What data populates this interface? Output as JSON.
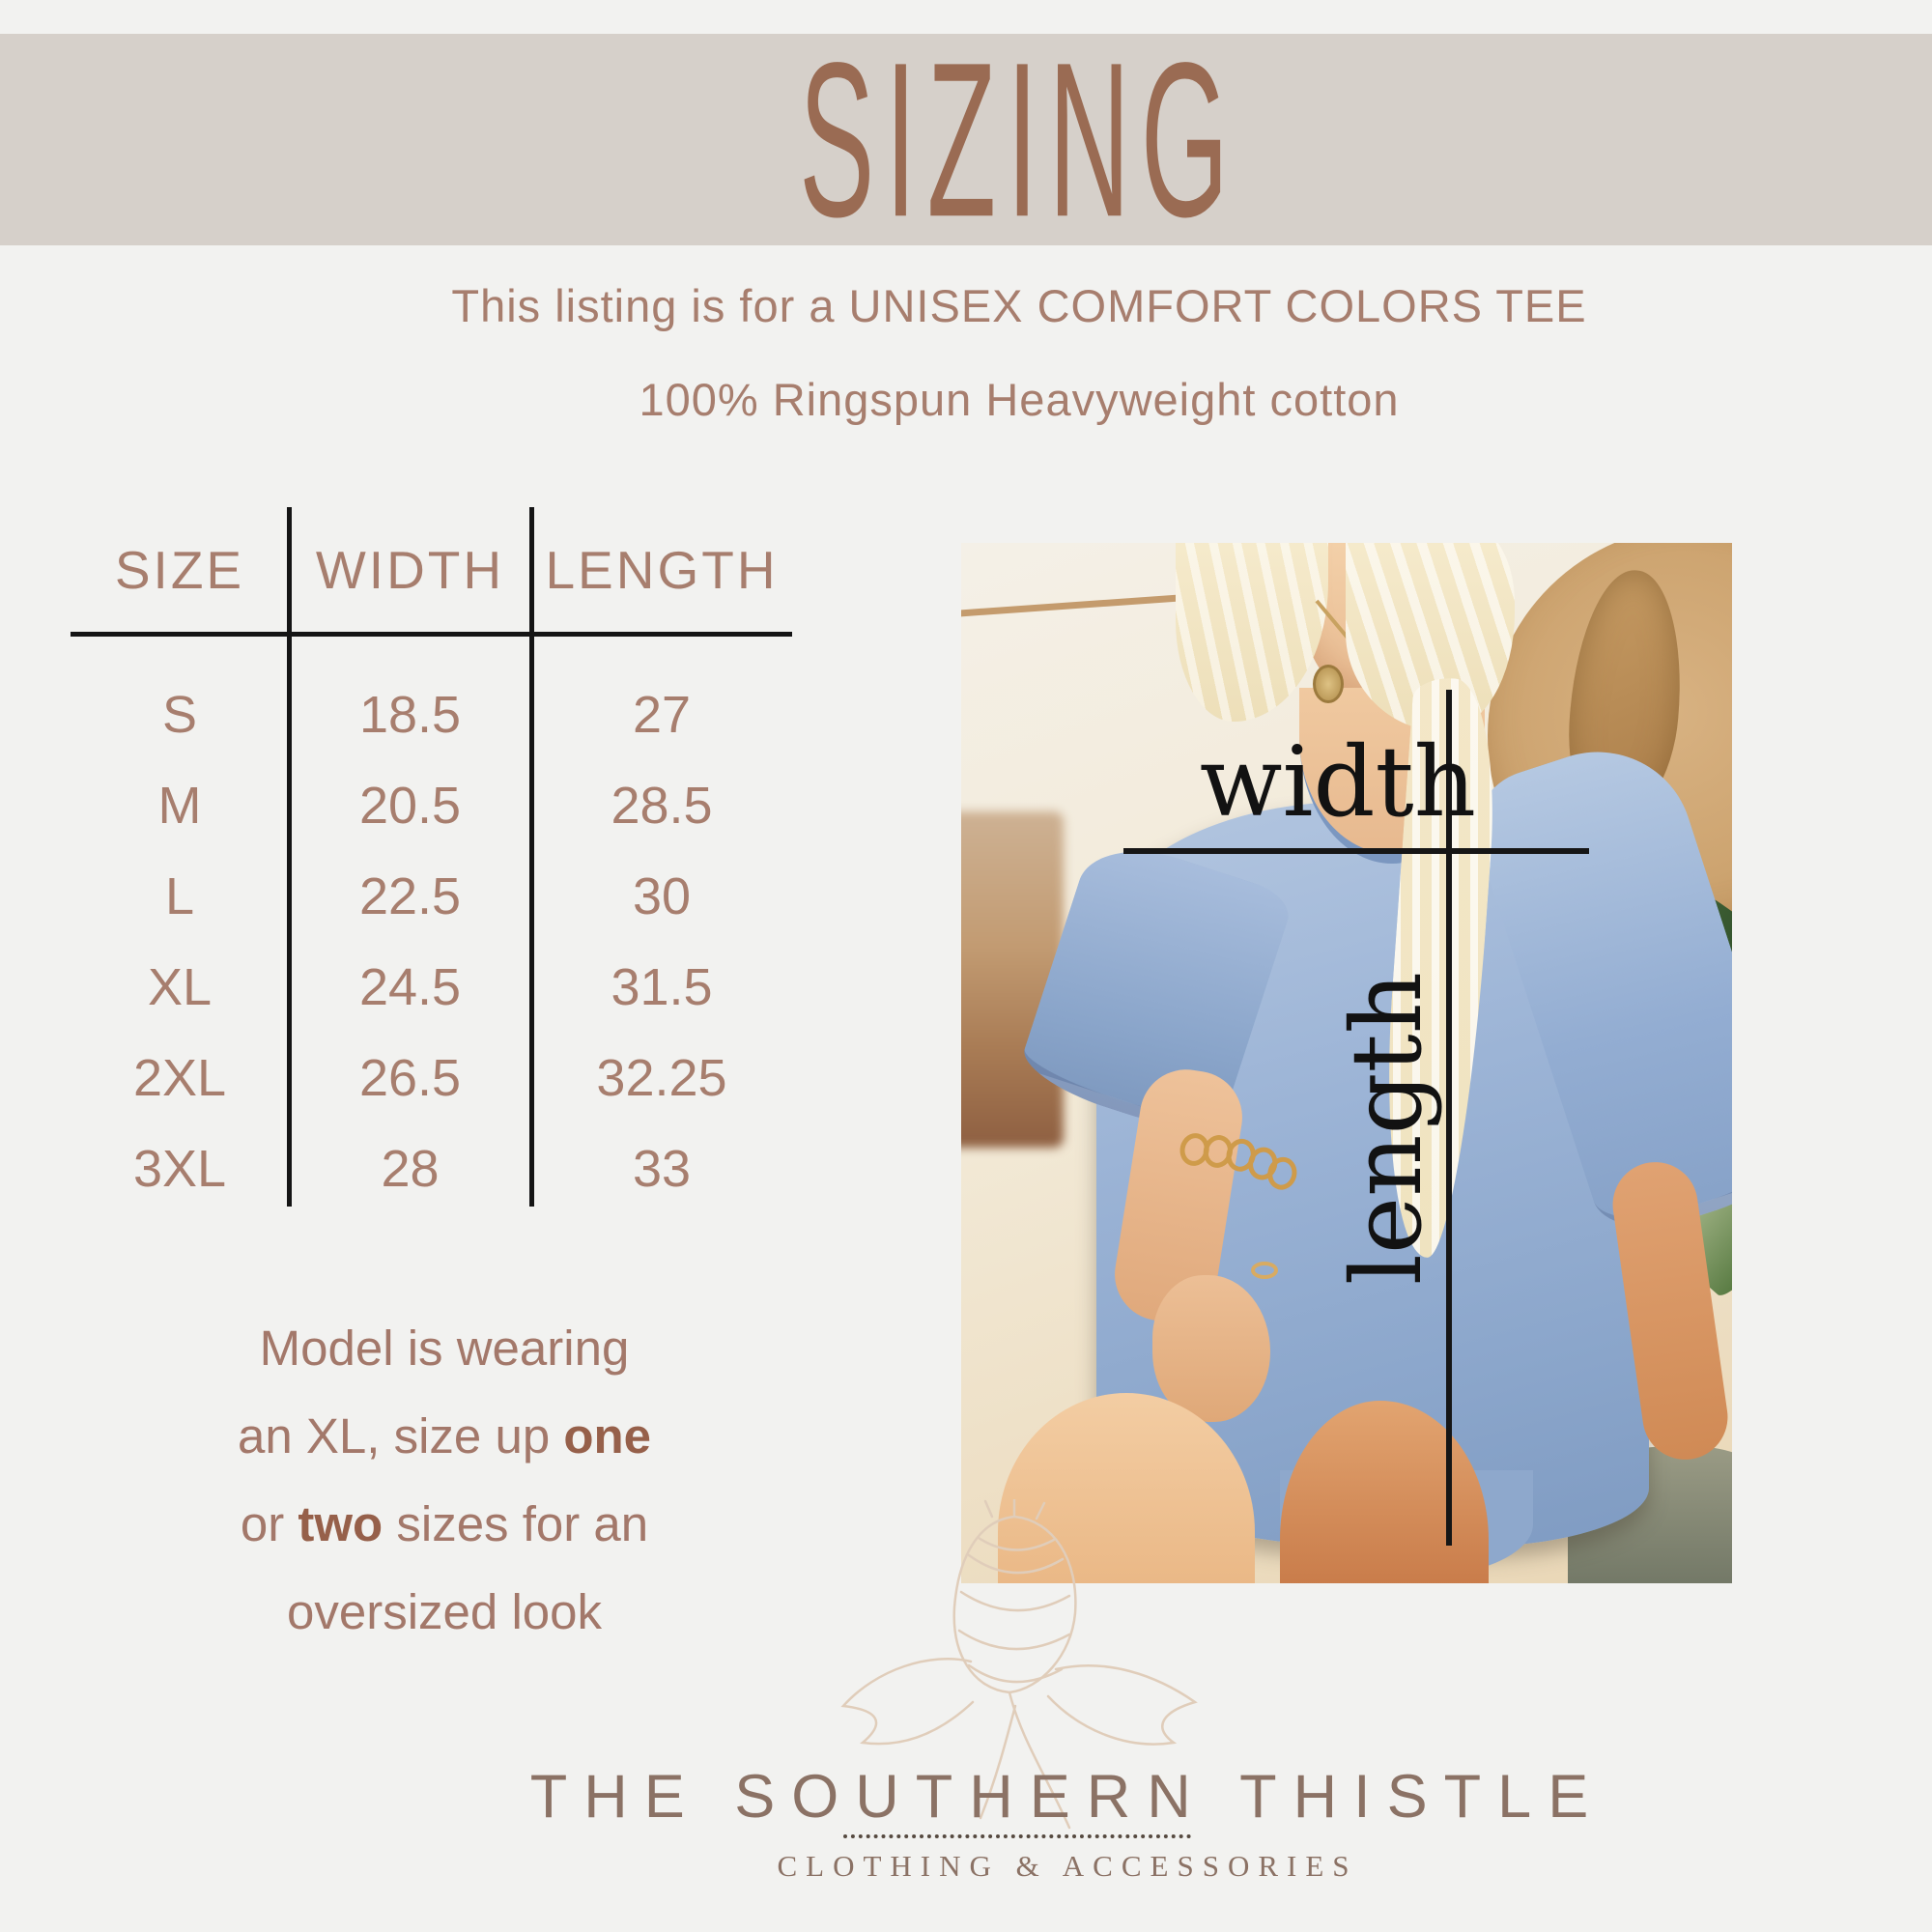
{
  "banner": {
    "title": "SIZING"
  },
  "intro": {
    "line1": "This listing is for a UNISEX COMFORT COLORS TEE",
    "line2": "100% Ringspun Heavyweight cotton"
  },
  "size_table": {
    "columns": [
      "SIZE",
      "WIDTH",
      "LENGTH"
    ],
    "rows": [
      {
        "size": "S",
        "width": "18.5",
        "length": "27"
      },
      {
        "size": "M",
        "width": "20.5",
        "length": "28.5"
      },
      {
        "size": "L",
        "width": "22.5",
        "length": "30"
      },
      {
        "size": "XL",
        "width": "24.5",
        "length": "31.5"
      },
      {
        "size": "2XL",
        "width": "26.5",
        "length": "32.25"
      },
      {
        "size": "3XL",
        "width": "28",
        "length": "33"
      }
    ]
  },
  "fit_note": {
    "line1": "Model is wearing",
    "line2": {
      "pre": "an XL, size up ",
      "bold": "one"
    },
    "line3": {
      "pre": "or ",
      "bold": "two",
      "post": " sizes for an"
    },
    "line4": "oversized look"
  },
  "measurement_overlay": {
    "width_label": "width",
    "length_label": "length"
  },
  "brand_footer": {
    "name": "THE SOUTHERN THISTLE",
    "tagline": "CLOTHING & ACCESSORIES"
  },
  "palette": {
    "page_background": "#f2f2f0",
    "banner_background": "#d6d0ca",
    "heading_brown": "#9a6b53",
    "body_text_brown": "#a77e6e",
    "note_bold_brown": "#96604a",
    "table_line_black": "#151515",
    "shirt_blue": "#94aed2",
    "hat_tan": "#c89e67",
    "footer_taupe": "#8b7265",
    "thistle_outline": "#e0cdba"
  }
}
